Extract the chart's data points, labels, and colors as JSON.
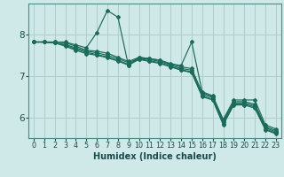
{
  "xlabel": "Humidex (Indice chaleur)",
  "bg_color": "#cfe8e8",
  "grid_color": "#b0cccc",
  "line_color": "#1a6b5a",
  "xlim": [
    -0.5,
    23.5
  ],
  "ylim": [
    5.5,
    8.75
  ],
  "yticks": [
    6,
    7,
    8
  ],
  "xticks": [
    0,
    1,
    2,
    3,
    4,
    5,
    6,
    7,
    8,
    9,
    10,
    11,
    12,
    13,
    14,
    15,
    16,
    17,
    18,
    19,
    20,
    21,
    22,
    23
  ],
  "lines": [
    {
      "x": [
        0,
        1,
        2,
        3,
        4,
        5,
        6,
        7,
        8,
        9,
        10,
        11,
        12,
        13,
        14,
        15,
        16,
        17,
        18,
        19,
        20,
        21,
        22,
        23
      ],
      "y": [
        7.82,
        7.82,
        7.82,
        7.82,
        7.75,
        7.68,
        8.05,
        8.58,
        8.42,
        7.25,
        7.45,
        7.42,
        7.38,
        7.3,
        7.25,
        7.82,
        6.62,
        6.52,
        5.95,
        6.42,
        6.42,
        6.42,
        5.82,
        5.72
      ]
    },
    {
      "x": [
        0,
        1,
        2,
        3,
        4,
        5,
        6,
        7,
        8,
        9,
        10,
        11,
        12,
        13,
        14,
        15,
        16,
        17,
        18,
        19,
        20,
        21,
        22,
        23
      ],
      "y": [
        7.82,
        7.82,
        7.82,
        7.8,
        7.72,
        7.62,
        7.6,
        7.55,
        7.45,
        7.35,
        7.45,
        7.42,
        7.38,
        7.28,
        7.22,
        7.18,
        6.6,
        6.5,
        5.92,
        6.38,
        6.38,
        6.32,
        5.78,
        5.68
      ]
    },
    {
      "x": [
        0,
        1,
        2,
        3,
        4,
        5,
        6,
        7,
        8,
        9,
        10,
        11,
        12,
        13,
        14,
        15,
        16,
        17,
        18,
        19,
        20,
        21,
        22,
        23
      ],
      "y": [
        7.82,
        7.82,
        7.8,
        7.76,
        7.68,
        7.6,
        7.56,
        7.5,
        7.42,
        7.32,
        7.43,
        7.4,
        7.35,
        7.26,
        7.18,
        7.14,
        6.56,
        6.48,
        5.88,
        6.35,
        6.35,
        6.28,
        5.75,
        5.65
      ]
    },
    {
      "x": [
        0,
        1,
        2,
        3,
        4,
        5,
        6,
        7,
        8,
        9,
        10,
        11,
        12,
        13,
        14,
        15,
        16,
        17,
        18,
        19,
        20,
        21,
        22,
        23
      ],
      "y": [
        7.82,
        7.82,
        7.8,
        7.74,
        7.65,
        7.57,
        7.52,
        7.46,
        7.38,
        7.28,
        7.41,
        7.37,
        7.32,
        7.23,
        7.15,
        7.1,
        6.52,
        6.44,
        5.85,
        6.32,
        6.32,
        6.25,
        5.72,
        5.62
      ]
    },
    {
      "x": [
        0,
        1,
        2,
        3,
        4,
        5,
        6,
        7,
        8,
        9,
        10,
        11,
        12,
        13,
        14,
        15,
        16,
        17,
        18,
        19,
        20,
        21,
        22,
        23
      ],
      "y": [
        7.82,
        7.82,
        7.8,
        7.72,
        7.62,
        7.54,
        7.5,
        7.44,
        7.36,
        7.26,
        7.4,
        7.35,
        7.3,
        7.22,
        7.14,
        7.08,
        6.5,
        6.42,
        5.82,
        6.3,
        6.3,
        6.22,
        5.7,
        5.6
      ]
    }
  ]
}
